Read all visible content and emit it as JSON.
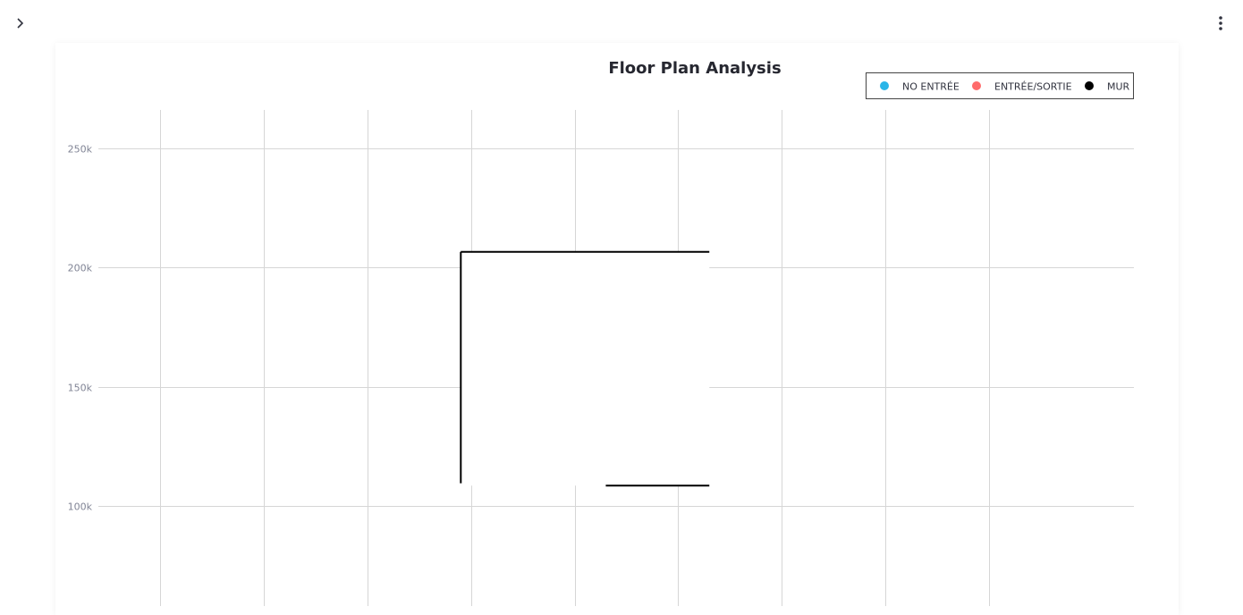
{
  "icons": {
    "sidebar_toggle": "chevron-right-icon",
    "main_menu": "vertical-dots-icon"
  },
  "chart_data": {
    "type": "line",
    "title": "Floor Plan Analysis",
    "xlabel": "",
    "ylabel": "",
    "y_ticks": [
      "250k",
      "200k",
      "150k",
      "100k"
    ],
    "y_tick_values": [
      250000,
      200000,
      150000,
      100000
    ],
    "ylim": [
      58000,
      266000
    ],
    "xlim": [
      0,
      10
    ],
    "x_gridlines": [
      0.6,
      1.6,
      2.6,
      3.6,
      4.6,
      5.6,
      6.6,
      7.6,
      8.6
    ],
    "grid": true,
    "legend_position": "top-right",
    "legend": [
      {
        "name": "NO ENTRÉE",
        "color": "#29b5e8"
      },
      {
        "name": "ENTRÉE/SORTIE",
        "color": "#ff6b6b"
      },
      {
        "name": "MUR",
        "color": "#000000"
      }
    ],
    "series": [
      {
        "name": "MUR",
        "color": "#000000",
        "segments": [
          [
            [
              3.5,
              109500
            ],
            [
              3.5,
              206500
            ]
          ],
          [
            [
              3.5,
              206500
            ],
            [
              5.9,
              206500
            ]
          ],
          [
            [
              4.9,
              108500
            ],
            [
              5.9,
              108500
            ]
          ]
        ]
      }
    ]
  }
}
